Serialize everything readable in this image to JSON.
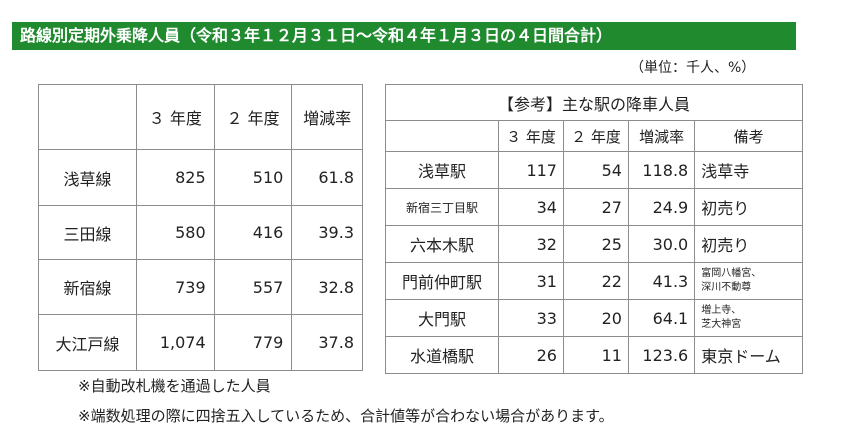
{
  "title": "路線別定期外乗降人員（令和３年１２月３１日～令和４年１月３日の４日間合計）",
  "unit": "（単位：千人、%）",
  "left_table": {
    "headers": [
      "",
      "３ 年度",
      "２ 年度",
      "増減率"
    ],
    "rows": [
      {
        "line": "浅草線",
        "y3": "825",
        "y2": "510",
        "rate": "61.8"
      },
      {
        "line": "三田線",
        "y3": "580",
        "y2": "416",
        "rate": "39.3"
      },
      {
        "line": "新宿線",
        "y3": "739",
        "y2": "557",
        "rate": "32.8"
      },
      {
        "line": "大江戸線",
        "y3": "1,074",
        "y2": "779",
        "rate": "37.8"
      }
    ]
  },
  "right_table": {
    "title": "【参考】主な駅の降車人員",
    "headers": [
      "３ 年度",
      "２ 年度",
      "増減率",
      "備考"
    ],
    "rows": [
      {
        "station": "浅草駅",
        "y3": "117",
        "y2": "54",
        "rate": "118.8",
        "note": "浅草寺",
        "small_station": false,
        "small_note": false
      },
      {
        "station": "新宿三丁目駅",
        "y3": "34",
        "y2": "27",
        "rate": "24.9",
        "note": "初売り",
        "small_station": true,
        "small_note": false
      },
      {
        "station": "六本木駅",
        "y3": "32",
        "y2": "25",
        "rate": "30.0",
        "note": "初売り",
        "small_station": false,
        "small_note": false
      },
      {
        "station": "門前仲町駅",
        "y3": "31",
        "y2": "22",
        "rate": "41.3",
        "note": "富岡八幡宮、\n深川不動尊",
        "small_station": false,
        "small_note": true
      },
      {
        "station": "大門駅",
        "y3": "33",
        "y2": "20",
        "rate": "64.1",
        "note": "増上寺、\n芝大神宮",
        "small_station": false,
        "small_note": true
      },
      {
        "station": "水道橋駅",
        "y3": "26",
        "y2": "11",
        "rate": "123.6",
        "note": "東京ドーム",
        "small_station": false,
        "small_note": false
      }
    ]
  },
  "footnotes": [
    "※自動改札機を通過した人員",
    "※端数処理の際に四捨五入しているため、合計値等が合わない場合があります。"
  ]
}
